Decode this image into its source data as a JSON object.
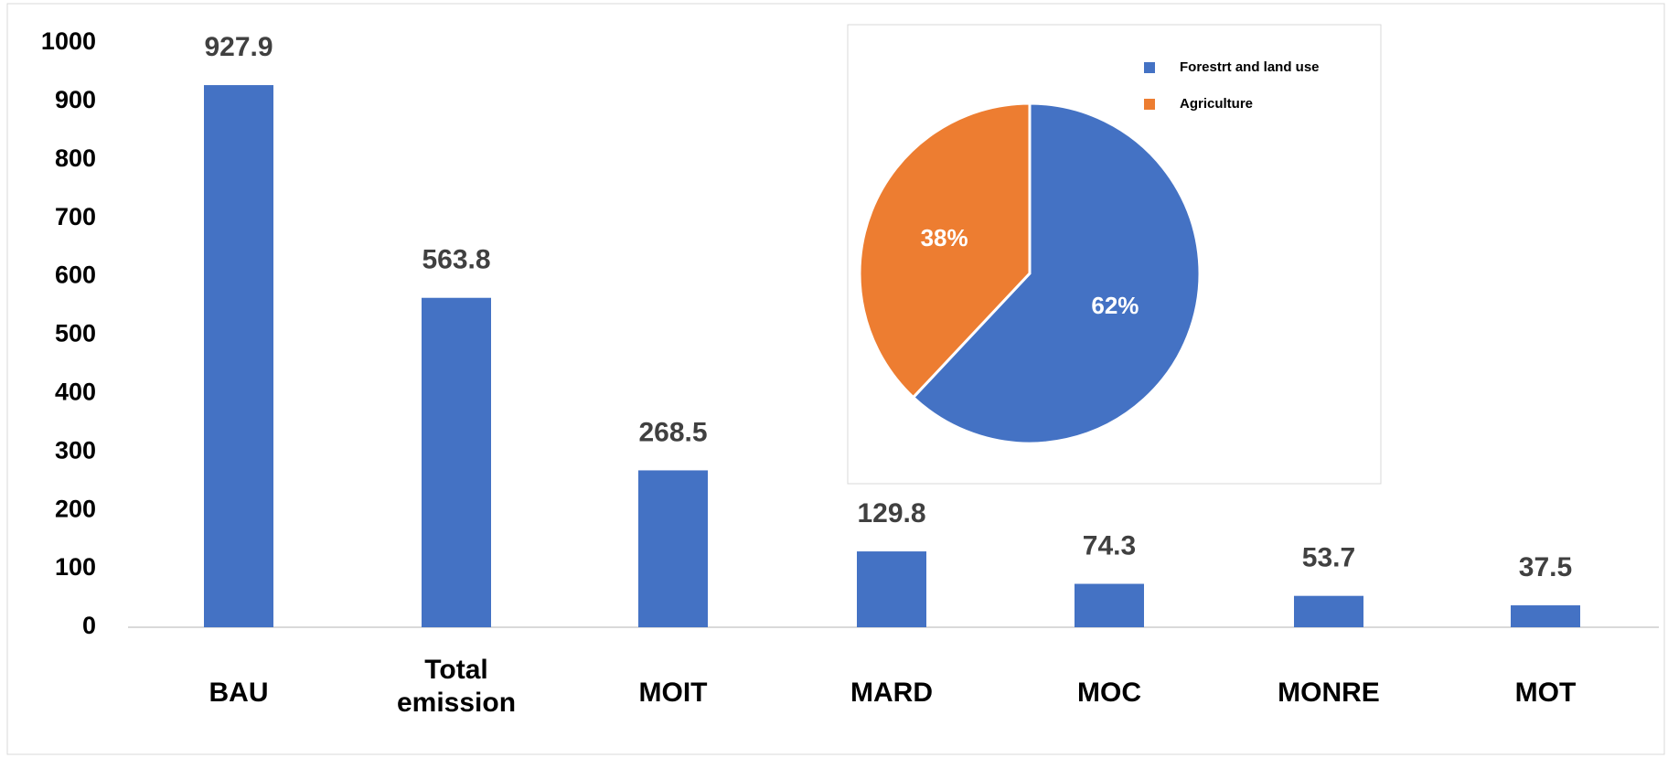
{
  "chart_data": [
    {
      "type": "bar",
      "categories": [
        "BAU",
        "Total emission",
        "MOIT",
        "MARD",
        "MOC",
        "MONRE",
        "MOT"
      ],
      "values": [
        927.9,
        563.8,
        268.5,
        129.8,
        74.3,
        53.7,
        37.5
      ],
      "color": "#4472c4",
      "ylim": [
        0,
        1000
      ],
      "yticks": [
        0,
        100,
        200,
        300,
        400,
        500,
        600,
        700,
        800,
        900,
        1000
      ],
      "grid": false
    },
    {
      "type": "pie",
      "categories": [
        "Forestrt and land use",
        "Agriculture"
      ],
      "values": [
        62,
        38
      ],
      "value_labels": [
        "62%",
        "38%"
      ],
      "colors": [
        "#4472c4",
        "#ed7d31"
      ],
      "legend": "upper right"
    }
  ]
}
